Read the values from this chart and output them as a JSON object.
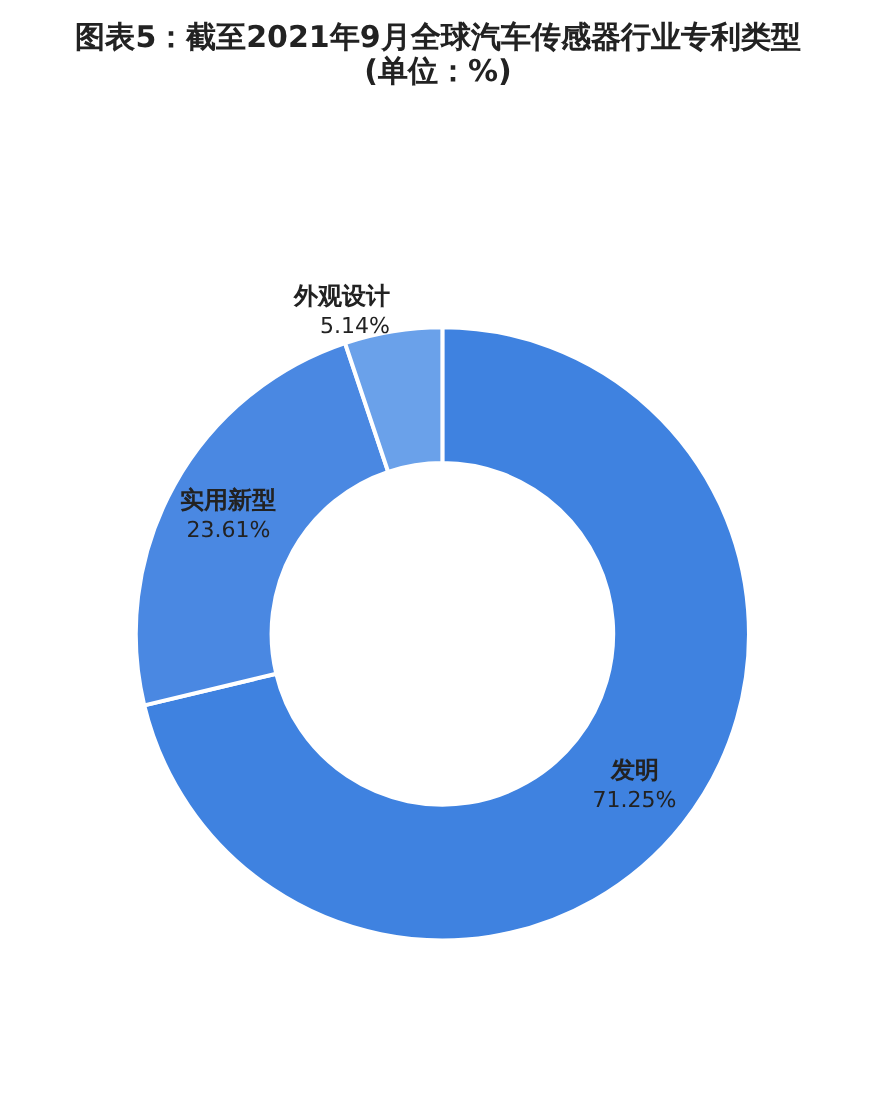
{
  "chart_data": {
    "type": "donut",
    "title": "图表5：截至2021年9月全球汽车传感器行业专利类型",
    "subtitle": "(单位：%)",
    "categories": [
      "发明",
      "实用新型",
      "外观设计"
    ],
    "values": [
      71.25,
      23.61,
      5.14
    ],
    "colors": [
      "#3f82e0",
      "#4a88e2",
      "#6aa1ea"
    ],
    "value_labels": [
      "71.25%",
      "23.61%",
      "5.14%"
    ],
    "legend": false
  }
}
